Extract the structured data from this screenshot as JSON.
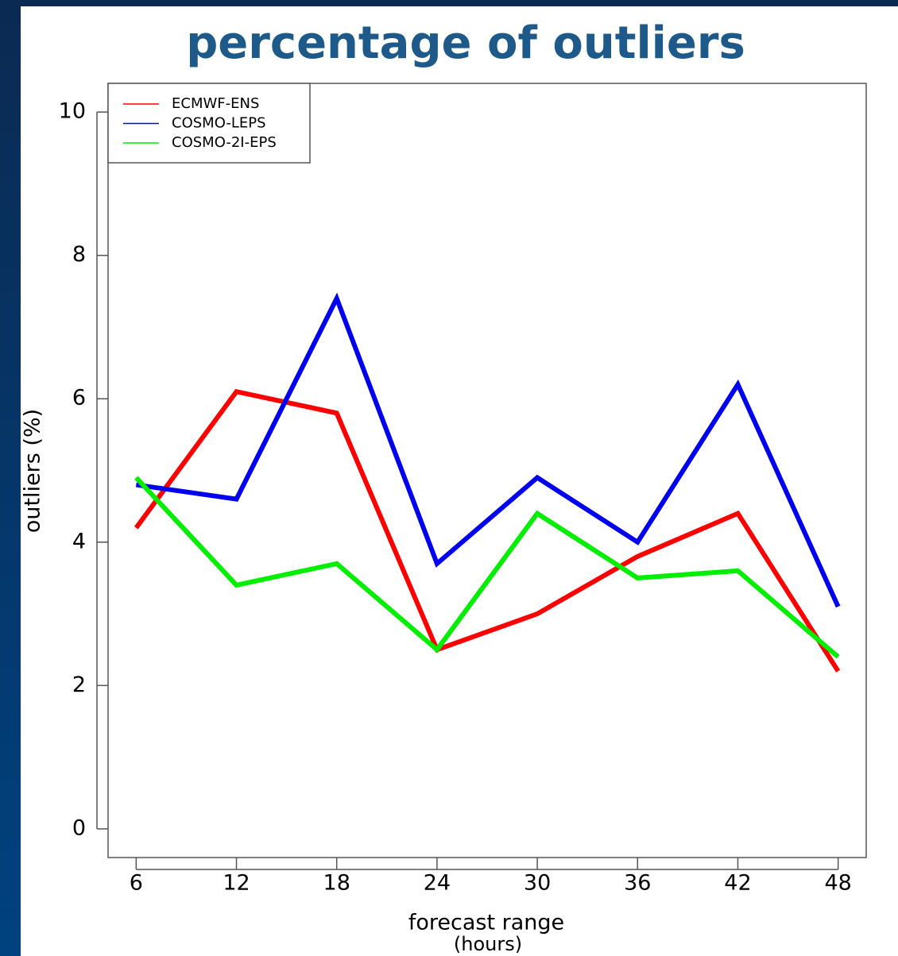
{
  "chart_data": {
    "type": "line",
    "title": "percentage of outliers",
    "x_label": "forecast range",
    "x_label_note": "(hours)",
    "y_label": "outliers (%)",
    "x": [
      6,
      12,
      18,
      24,
      30,
      36,
      42,
      48
    ],
    "series": [
      {
        "name": "ECMWF-ENS",
        "color": "#ff0000",
        "values": [
          4.2,
          6.1,
          5.8,
          2.5,
          3.0,
          3.8,
          4.4,
          2.2
        ]
      },
      {
        "name": "COSMO-LEPS",
        "color": "#0000ee",
        "values": [
          4.8,
          4.6,
          7.4,
          3.7,
          4.9,
          4.0,
          6.2,
          3.1
        ]
      },
      {
        "name": "COSMO-2I-EPS",
        "color": "#00ee00",
        "values": [
          4.9,
          3.4,
          3.7,
          2.5,
          4.4,
          3.5,
          3.6,
          2.4
        ]
      }
    ],
    "xlim": [
      4.32,
      49.68
    ],
    "xticks": [
      6,
      12,
      18,
      24,
      30,
      36,
      42,
      48
    ],
    "ylim": [
      -0.4,
      10.4
    ],
    "yticks": [
      0,
      2,
      4,
      6,
      8,
      10
    ],
    "legend": "top-left",
    "grid": false
  }
}
